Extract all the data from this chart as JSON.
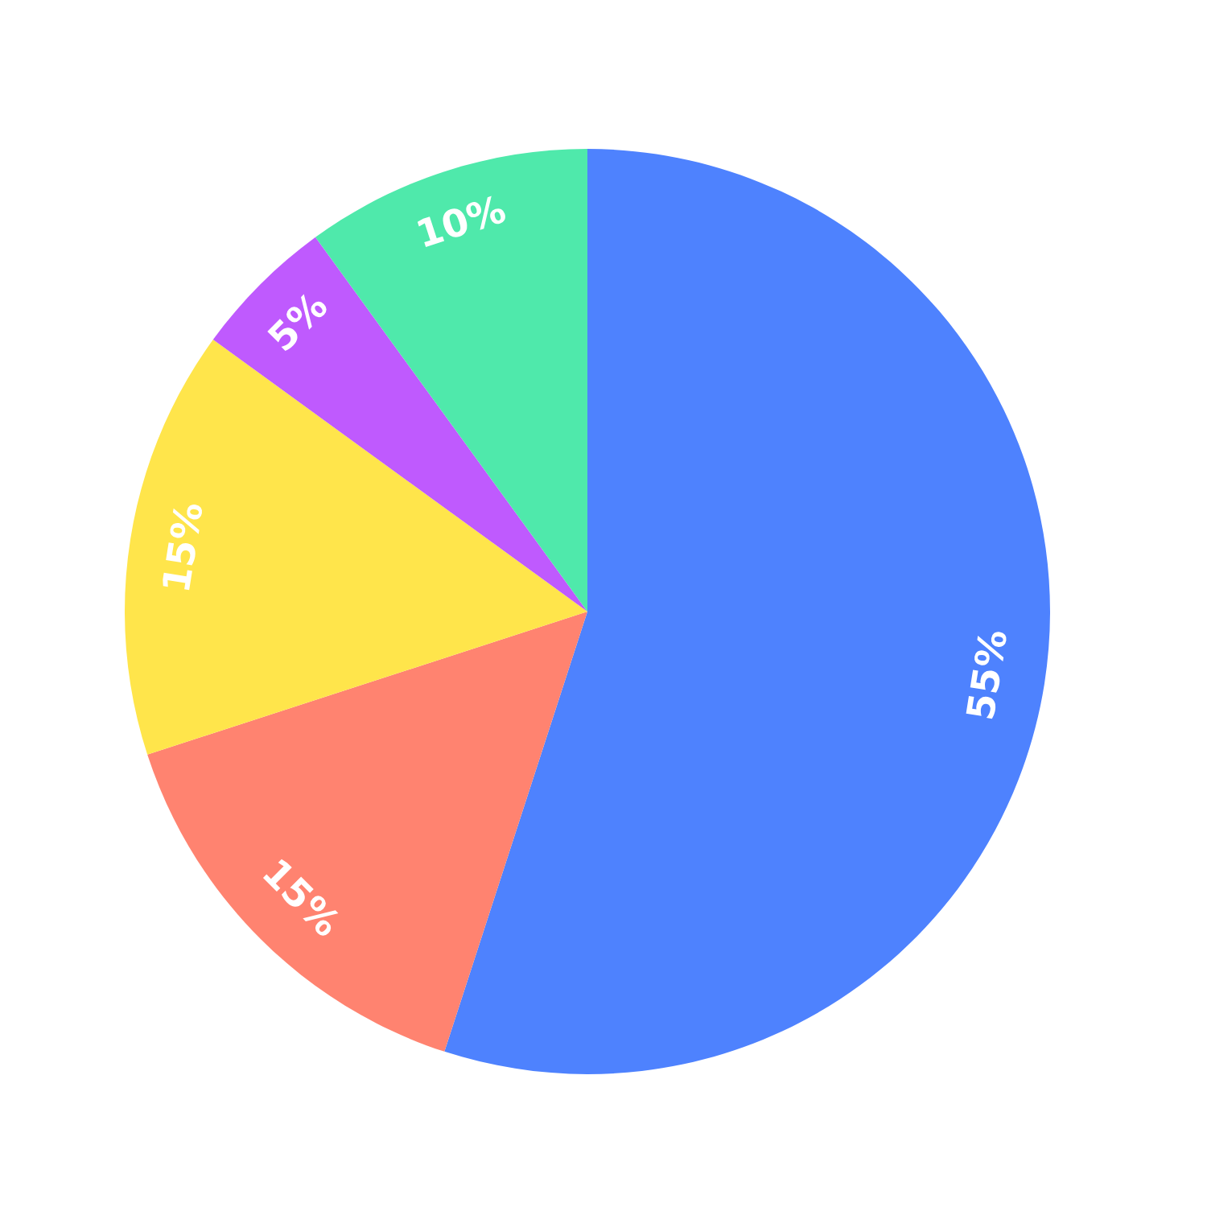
{
  "chart_data": {
    "type": "pie",
    "categories": [
      null,
      null,
      null,
      null,
      null
    ],
    "values": [
      55,
      15,
      15,
      5,
      10
    ],
    "colors": [
      "#4e82fe",
      "#ff8370",
      "#ffe54b",
      "#bf5afe",
      "#4fe9ab"
    ],
    "value_labels": [
      "55%",
      "15%",
      "15%",
      "5%",
      "10%"
    ]
  }
}
